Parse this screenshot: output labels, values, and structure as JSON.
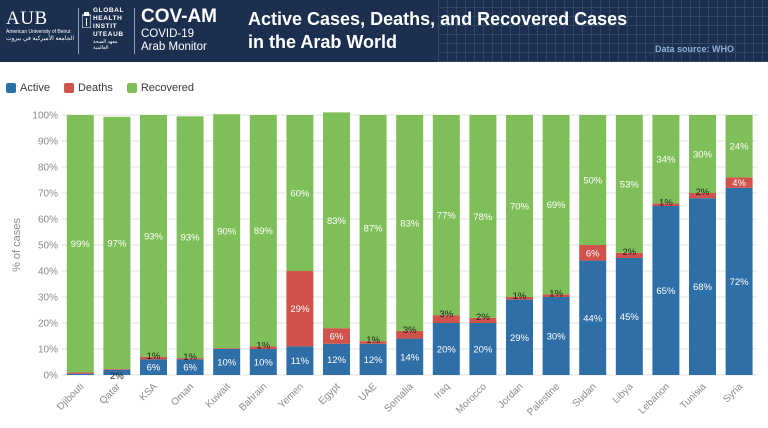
{
  "header": {
    "logo": {
      "mark": "AUB",
      "university": "American University of Beirut",
      "arabic": "الجامعة الأميركية في بيروت"
    },
    "institute": {
      "line1": "GLOBAL",
      "line2": "HEALTH",
      "line3": "INSTIT",
      "line4": "UTEAUB",
      "arabic": "معهد الصحة العالمية"
    },
    "brand": {
      "title": "COV-AM",
      "subtitle1": "COVID-19",
      "subtitle2": "Arab Monitor"
    },
    "title_line1": "Active Cases, Deaths, and Recovered Cases",
    "title_line2": "in the Arab World",
    "source": "Data source: WHO"
  },
  "colors": {
    "active": "#2f6fa7",
    "deaths": "#d0524a",
    "recovered": "#7fbf59",
    "banner": "#1c2f4f"
  },
  "legend": [
    {
      "label": "Active",
      "color": "#2f6fa7"
    },
    {
      "label": "Deaths",
      "color": "#d0524a"
    },
    {
      "label": "Recovered",
      "color": "#7fbf59"
    }
  ],
  "chart_data": {
    "type": "bar",
    "stacked": true,
    "ylabel": "% of cases",
    "ylim": [
      0,
      100
    ],
    "yticks": [
      "0%",
      "10%",
      "20%",
      "30%",
      "40%",
      "50%",
      "60%",
      "70%",
      "80%",
      "90%",
      "100%"
    ],
    "grid": true,
    "legend_position": "top-left",
    "categories": [
      "Djibouti",
      "Qatar",
      "KSA",
      "Oman",
      "Kuwait",
      "Bahrain",
      "Yemen",
      "Egypt",
      "UAE",
      "Somalia",
      "Iraq",
      "Morocco",
      "Jordan",
      "Palestine",
      "Sudan",
      "Libya",
      "Lebanon",
      "Tunisia",
      "Syria"
    ],
    "series": [
      {
        "name": "Active",
        "values": [
          0.5,
          2,
          6,
          6,
          10,
          10,
          11,
          12,
          12,
          14,
          20,
          20,
          29,
          30,
          44,
          45,
          65,
          68,
          72
        ],
        "labels": [
          "",
          "2%",
          "6%",
          "6%",
          "10%",
          "10%",
          "11%",
          "12%",
          "12%",
          "14%",
          "20%",
          "20%",
          "29%",
          "30%",
          "44%",
          "45%",
          "65%",
          "68%",
          "72%"
        ]
      },
      {
        "name": "Deaths",
        "values": [
          0.5,
          0.3,
          1,
          0.5,
          0.3,
          1,
          29,
          6,
          1,
          3,
          3,
          2,
          1,
          1,
          6,
          2,
          1,
          2,
          4
        ],
        "labels": [
          "",
          "",
          "1%",
          "1%",
          "",
          "1%",
          "29%",
          "6%",
          "1%",
          "3%",
          "3%",
          "2%",
          "1%",
          "1%",
          "6%",
          "2%",
          "1%",
          "2%",
          "4%"
        ]
      },
      {
        "name": "Recovered",
        "values": [
          99,
          97,
          93,
          93,
          90,
          89,
          60,
          83,
          87,
          83,
          77,
          78,
          70,
          69,
          50,
          53,
          34,
          30,
          24
        ],
        "labels": [
          "99%",
          "97%",
          "93%",
          "93%",
          "90%",
          "89%",
          "60%",
          "83%",
          "87%",
          "83%",
          "77%",
          "78%",
          "70%",
          "69%",
          "50%",
          "53%",
          "34%",
          "30%",
          "24%"
        ]
      }
    ]
  }
}
